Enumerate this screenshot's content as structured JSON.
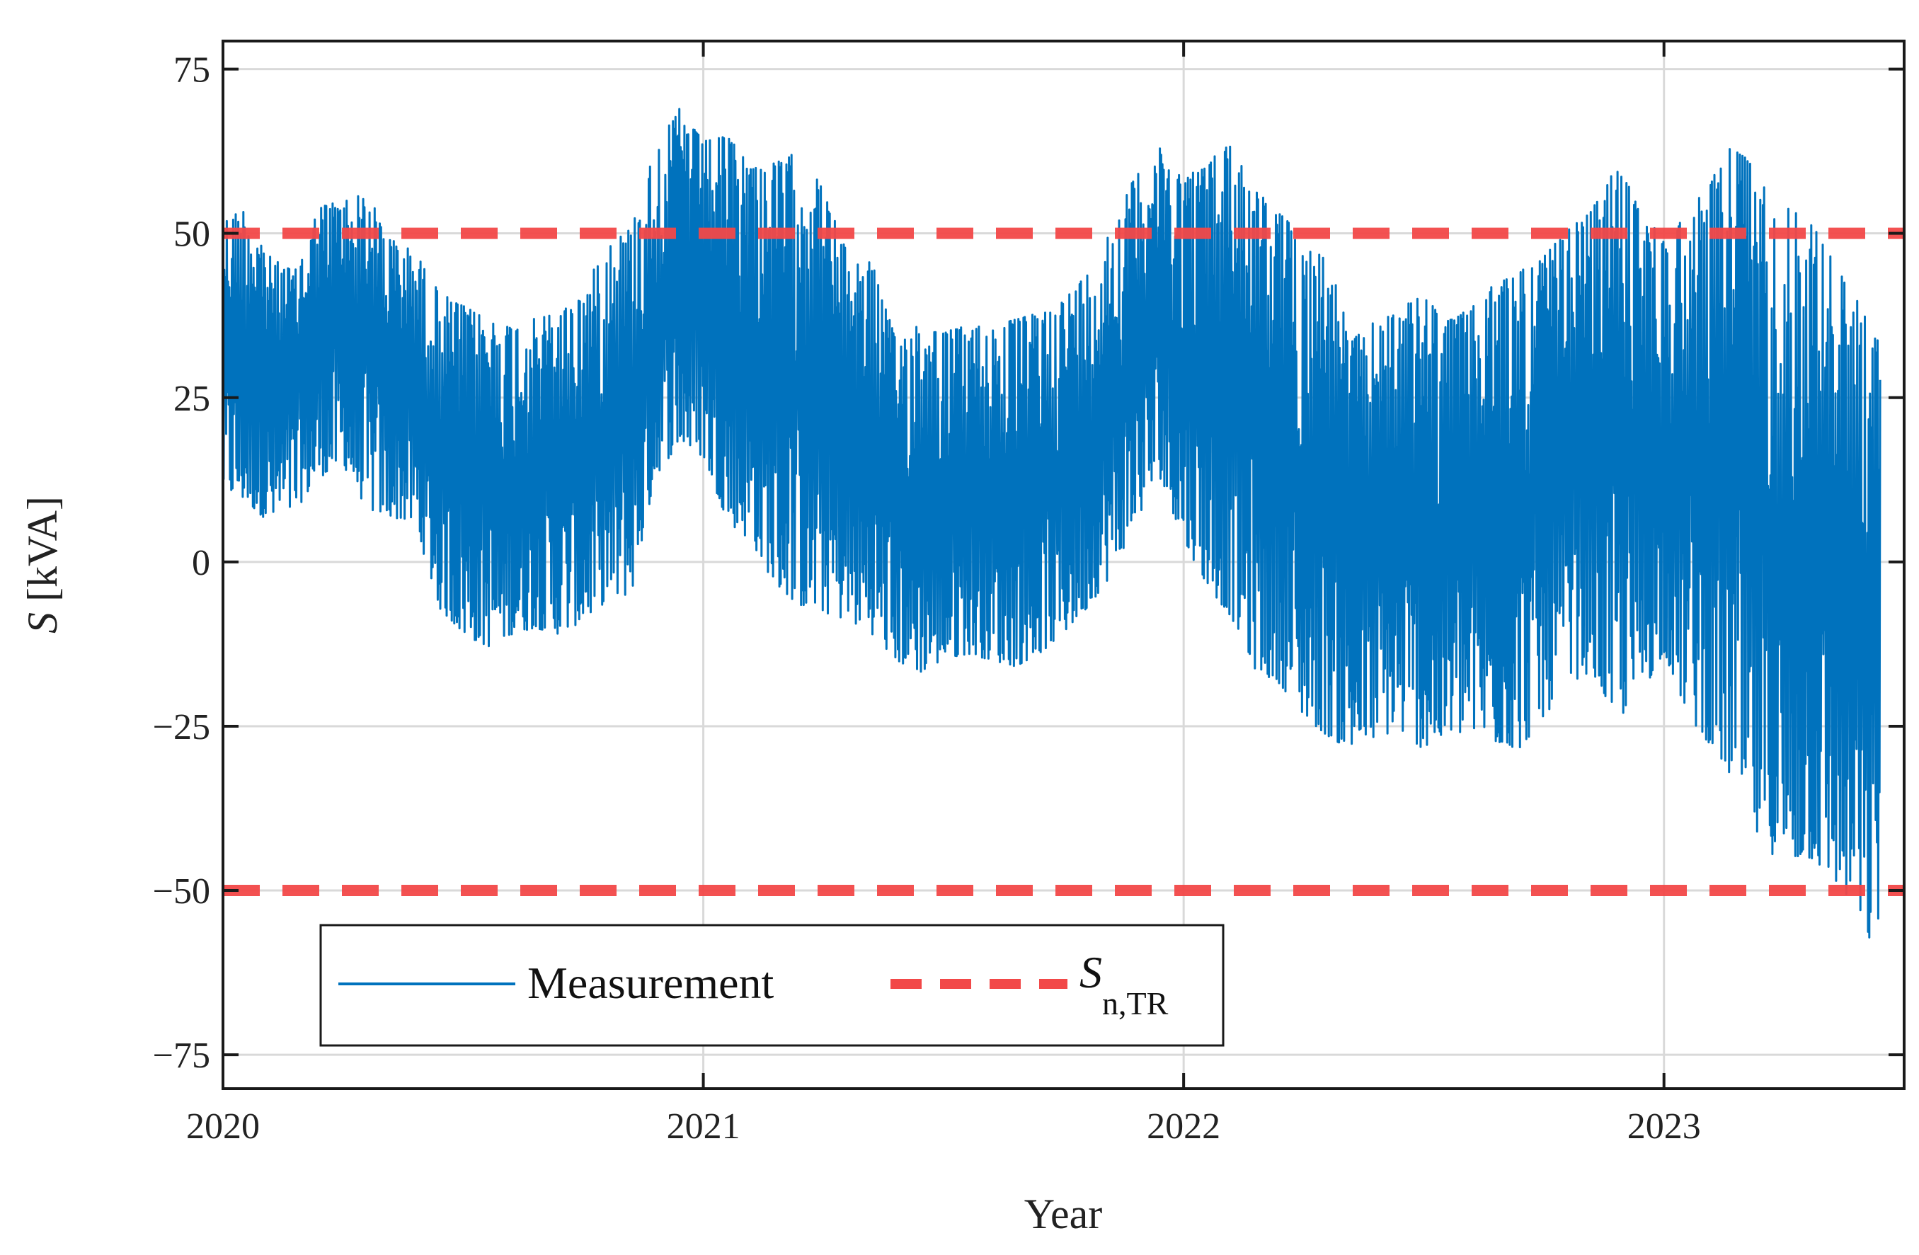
{
  "colors": {
    "measurement": "#0072BD",
    "rated_limit": "#F24848",
    "grid": "#d9d9d9",
    "axis": "#1a1a1a"
  },
  "chart_data": {
    "type": "line",
    "title": "",
    "xlabel": "Year",
    "ylabel": {
      "symbol": "S",
      "unit": "[kVA]"
    },
    "xlim": [
      2020.0,
      2023.5
    ],
    "ylim": [
      -78,
      77
    ],
    "x_ticks": [
      {
        "value": 2020,
        "label": "2020"
      },
      {
        "value": 2021,
        "label": "2021"
      },
      {
        "value": 2022,
        "label": "2022"
      },
      {
        "value": 2023,
        "label": "2023"
      }
    ],
    "y_ticks": [
      {
        "value": 75,
        "label": "75"
      },
      {
        "value": 50,
        "label": "50"
      },
      {
        "value": 25,
        "label": "25"
      },
      {
        "value": 0,
        "label": "0"
      },
      {
        "value": -25,
        "label": "−25"
      },
      {
        "value": -50,
        "label": "−50"
      },
      {
        "value": -75,
        "label": "−75"
      }
    ],
    "grid": true,
    "legend": {
      "placement": "bottom-left",
      "entries": [
        {
          "name": "Measurement",
          "style": "solid"
        },
        {
          "name": "S",
          "subscript": "n,TR",
          "style": "dashed"
        }
      ]
    },
    "series": [
      {
        "name": "Measurement",
        "style": "solid",
        "note": "dense time series; envelope estimated per ~0.05 year",
        "envelope": [
          {
            "x": 2020.0,
            "min": 10,
            "max": 53
          },
          {
            "x": 2020.05,
            "min": 8,
            "max": 55
          },
          {
            "x": 2020.1,
            "min": 5,
            "max": 47
          },
          {
            "x": 2020.15,
            "min": 7,
            "max": 45
          },
          {
            "x": 2020.2,
            "min": 12,
            "max": 55
          },
          {
            "x": 2020.25,
            "min": 14,
            "max": 56
          },
          {
            "x": 2020.3,
            "min": 7,
            "max": 57
          },
          {
            "x": 2020.35,
            "min": 6,
            "max": 50
          },
          {
            "x": 2020.4,
            "min": 5,
            "max": 48
          },
          {
            "x": 2020.45,
            "min": -8,
            "max": 42
          },
          {
            "x": 2020.5,
            "min": -12,
            "max": 40
          },
          {
            "x": 2020.55,
            "min": -14,
            "max": 38
          },
          {
            "x": 2020.6,
            "min": -12,
            "max": 37
          },
          {
            "x": 2020.65,
            "min": -11,
            "max": 38
          },
          {
            "x": 2020.7,
            "min": -12,
            "max": 39
          },
          {
            "x": 2020.75,
            "min": -10,
            "max": 42
          },
          {
            "x": 2020.8,
            "min": -7,
            "max": 50
          },
          {
            "x": 2020.85,
            "min": -6,
            "max": 52
          },
          {
            "x": 2020.9,
            "min": 12,
            "max": 64
          },
          {
            "x": 2020.95,
            "min": 17,
            "max": 70
          },
          {
            "x": 2021.0,
            "min": 15,
            "max": 65
          },
          {
            "x": 2021.05,
            "min": 5,
            "max": 66
          },
          {
            "x": 2021.1,
            "min": 2,
            "max": 62
          },
          {
            "x": 2021.15,
            "min": -5,
            "max": 62
          },
          {
            "x": 2021.2,
            "min": -8,
            "max": 64
          },
          {
            "x": 2021.25,
            "min": -9,
            "max": 58
          },
          {
            "x": 2021.3,
            "min": -10,
            "max": 48
          },
          {
            "x": 2021.35,
            "min": -12,
            "max": 47
          },
          {
            "x": 2021.4,
            "min": -16,
            "max": 35
          },
          {
            "x": 2021.45,
            "min": -18,
            "max": 38
          },
          {
            "x": 2021.5,
            "min": -16,
            "max": 36
          },
          {
            "x": 2021.55,
            "min": -15,
            "max": 37
          },
          {
            "x": 2021.6,
            "min": -16,
            "max": 37
          },
          {
            "x": 2021.65,
            "min": -17,
            "max": 38
          },
          {
            "x": 2021.7,
            "min": -15,
            "max": 39
          },
          {
            "x": 2021.75,
            "min": -12,
            "max": 41
          },
          {
            "x": 2021.8,
            "min": -8,
            "max": 45
          },
          {
            "x": 2021.85,
            "min": -3,
            "max": 52
          },
          {
            "x": 2021.9,
            "min": 5,
            "max": 60
          },
          {
            "x": 2021.95,
            "min": 12,
            "max": 64
          },
          {
            "x": 2022.0,
            "min": 2,
            "max": 60
          },
          {
            "x": 2022.05,
            "min": -5,
            "max": 62
          },
          {
            "x": 2022.1,
            "min": -10,
            "max": 66
          },
          {
            "x": 2022.15,
            "min": -18,
            "max": 58
          },
          {
            "x": 2022.2,
            "min": -20,
            "max": 55
          },
          {
            "x": 2022.25,
            "min": -25,
            "max": 50
          },
          {
            "x": 2022.3,
            "min": -28,
            "max": 48
          },
          {
            "x": 2022.35,
            "min": -30,
            "max": 35
          },
          {
            "x": 2022.4,
            "min": -28,
            "max": 38
          },
          {
            "x": 2022.45,
            "min": -27,
            "max": 40
          },
          {
            "x": 2022.5,
            "min": -30,
            "max": 42
          },
          {
            "x": 2022.55,
            "min": -28,
            "max": 38
          },
          {
            "x": 2022.6,
            "min": -27,
            "max": 40
          },
          {
            "x": 2022.65,
            "min": -29,
            "max": 44
          },
          {
            "x": 2022.7,
            "min": -30,
            "max": 46
          },
          {
            "x": 2022.75,
            "min": -25,
            "max": 48
          },
          {
            "x": 2022.8,
            "min": -20,
            "max": 52
          },
          {
            "x": 2022.85,
            "min": -18,
            "max": 55
          },
          {
            "x": 2022.9,
            "min": -26,
            "max": 62
          },
          {
            "x": 2022.95,
            "min": -22,
            "max": 56
          },
          {
            "x": 2023.0,
            "min": -15,
            "max": 50
          },
          {
            "x": 2023.05,
            "min": -25,
            "max": 55
          },
          {
            "x": 2023.1,
            "min": -30,
            "max": 60
          },
          {
            "x": 2023.15,
            "min": -36,
            "max": 67
          },
          {
            "x": 2023.2,
            "min": -45,
            "max": 60
          },
          {
            "x": 2023.25,
            "min": -48,
            "max": 56
          },
          {
            "x": 2023.3,
            "min": -47,
            "max": 55
          },
          {
            "x": 2023.35,
            "min": -50,
            "max": 48
          },
          {
            "x": 2023.4,
            "min": -55,
            "max": 42
          },
          {
            "x": 2023.43,
            "min": -60,
            "max": 38
          },
          {
            "x": 2023.45,
            "min": -56,
            "max": 35
          }
        ]
      },
      {
        "name": "S_n,TR",
        "style": "dashed",
        "lines": [
          {
            "y": 50
          },
          {
            "y": -50
          }
        ]
      }
    ]
  }
}
